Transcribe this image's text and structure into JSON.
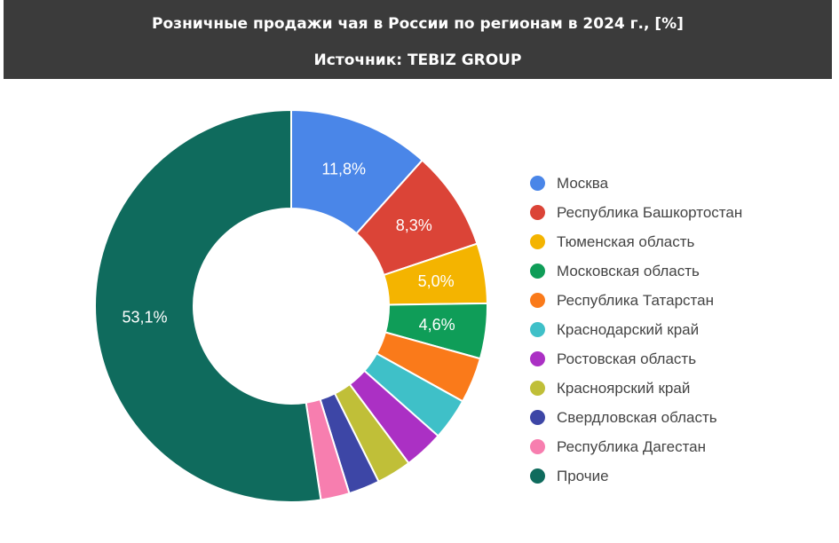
{
  "header": {
    "title": "Розничные продажи чая в России по регионам в 2024 г., [%]",
    "source": "Источник: TEBIZ GROUP"
  },
  "chart_data": {
    "type": "pie",
    "donut": true,
    "legend_position": "right",
    "categories": [
      "Москва",
      "Республика Башкортостан",
      "Тюменская область",
      "Московская область",
      "Республика Татарстан",
      "Краснодарский край",
      "Ростовская область",
      "Красноярский край",
      "Свердловская область",
      "Республика Дагестан",
      "Прочие"
    ],
    "values": [
      11.8,
      8.3,
      5.0,
      4.6,
      3.8,
      3.5,
      3.3,
      2.9,
      2.6,
      2.4,
      53.1
    ],
    "value_labels": [
      "11,8%",
      "8,3%",
      "5,0%",
      "4,6%",
      "",
      "",
      "",
      "",
      "",
      "",
      "53,1%"
    ],
    "colors": [
      "#4a86e8",
      "#db4437",
      "#f4b400",
      "#0f9d58",
      "#fa7a1a",
      "#3fc0c8",
      "#ab30c4",
      "#c0bf38",
      "#3d46a6",
      "#f77eaf",
      "#0f6b5d"
    ]
  }
}
